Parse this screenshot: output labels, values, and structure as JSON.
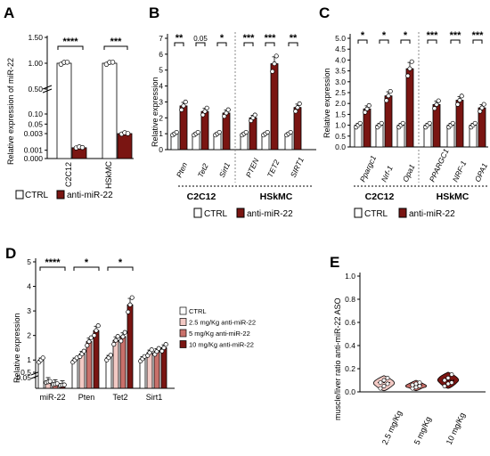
{
  "colors": {
    "ctrl": "#ffffff",
    "anti": "#7a1512",
    "anti_light": "#f2c9c4",
    "anti_mid": "#c9706a",
    "anti_mid2": "#a8403a",
    "edge": "#000000"
  },
  "chart_data": [
    {
      "panel": "A",
      "type": "bar",
      "ylabel": "Relative expression of miR-22",
      "yticks": [
        "0.000",
        "0.001",
        "0.003",
        "0.05",
        "0.10",
        "0.50",
        "1.00",
        "1.50"
      ],
      "categories": [
        "C2C12",
        "HSkMC"
      ],
      "series": [
        {
          "name": "CTRL",
          "values": [
            1.0,
            1.0
          ]
        },
        {
          "name": "anti-miR-22",
          "values": [
            0.0013,
            0.003
          ]
        }
      ],
      "significance": [
        "****",
        "***"
      ],
      "legend": [
        "CTRL",
        "anti-miR-22"
      ]
    },
    {
      "panel": "B",
      "type": "bar",
      "ylabel": "Relative expression",
      "yticks": [
        "0",
        "1",
        "2",
        "3",
        "4",
        "5",
        "6",
        "7"
      ],
      "ylim": [
        0,
        7
      ],
      "categories": [
        "Pten",
        "Tet2",
        "Sirt1",
        "PTEN",
        "TET2",
        "SIRT1"
      ],
      "series": [
        {
          "name": "CTRL",
          "values": [
            1.0,
            1.0,
            1.0,
            1.0,
            1.0,
            1.0
          ]
        },
        {
          "name": "anti-miR-22",
          "values": [
            2.75,
            2.4,
            2.3,
            2.0,
            5.4,
            2.65
          ]
        }
      ],
      "significance": [
        "**",
        "0.05",
        "*",
        "***",
        "***",
        "**"
      ],
      "groups": [
        "C2C12",
        "HSkMC"
      ],
      "legend": [
        "CTRL",
        "anti-miR-22"
      ]
    },
    {
      "panel": "C",
      "type": "bar",
      "ylabel": "Relative expression",
      "yticks": [
        "0.0",
        "0.5",
        "1.0",
        "1.5",
        "2.0",
        "2.5",
        "3.0",
        "3.5",
        "4.0",
        "4.5",
        "5.0"
      ],
      "ylim": [
        0,
        5
      ],
      "categories": [
        "Ppargc1",
        "Nrf-1",
        "Opa1",
        "PPARGC1",
        "NRF-1",
        "OPA1"
      ],
      "series": [
        {
          "name": "CTRL",
          "values": [
            1.0,
            1.0,
            1.0,
            1.0,
            1.0,
            1.0
          ]
        },
        {
          "name": "anti-miR-22",
          "values": [
            1.75,
            2.35,
            3.6,
            1.95,
            2.15,
            1.8
          ]
        }
      ],
      "significance": [
        "*",
        "*",
        "*",
        "***",
        "***",
        "***"
      ],
      "groups": [
        "C2C12",
        "HSkMC"
      ],
      "legend": [
        "CTRL",
        "anti-miR-22"
      ]
    },
    {
      "panel": "D",
      "type": "bar",
      "ylabel": "Relative expression",
      "yticks": [
        "0.05",
        "0.5",
        "1",
        "2",
        "3",
        "4",
        "5"
      ],
      "categories": [
        "miR-22",
        "Pten",
        "Tet2",
        "Sirt1"
      ],
      "series": [
        {
          "name": "CTRL",
          "values": [
            1.0,
            1.0,
            1.1,
            1.05
          ]
        },
        {
          "name": "2.5 mg/Kg anti-miR-22",
          "values": [
            0.03,
            1.25,
            1.8,
            1.3
          ]
        },
        {
          "name": "5 mg/Kg anti-miR-22",
          "values": [
            0.02,
            1.75,
            1.95,
            1.35
          ]
        },
        {
          "name": "10 mg/Kg anti-miR-22",
          "values": [
            0.015,
            2.2,
            3.25,
            1.5
          ]
        }
      ],
      "significance": [
        "****",
        "*",
        "*",
        ""
      ],
      "legend": [
        "CTRL",
        "2.5 mg/Kg anti-miR-22",
        "5 mg/Kg anti-miR-22",
        "10 mg/Kg anti-miR-22"
      ]
    },
    {
      "panel": "E",
      "type": "violin",
      "ylabel": "muscle/liver ratio anti-miR-22 ASO",
      "yticks": [
        "0.0",
        "0.2",
        "0.4",
        "0.6",
        "0.8",
        "1.0"
      ],
      "ylim": [
        0,
        1
      ],
      "categories": [
        "2.5 mg/Kg",
        "5 mg/Kg",
        "10 mg/Kg"
      ],
      "series": [
        {
          "name": "2.5 mg/Kg",
          "values": [
            0.03,
            0.05,
            0.07,
            0.08,
            0.1,
            0.12
          ]
        },
        {
          "name": "5 mg/Kg",
          "values": [
            0.03,
            0.04,
            0.05,
            0.06,
            0.07,
            0.08
          ]
        },
        {
          "name": "10 mg/Kg",
          "values": [
            0.05,
            0.07,
            0.08,
            0.1,
            0.12,
            0.15
          ]
        }
      ]
    }
  ]
}
